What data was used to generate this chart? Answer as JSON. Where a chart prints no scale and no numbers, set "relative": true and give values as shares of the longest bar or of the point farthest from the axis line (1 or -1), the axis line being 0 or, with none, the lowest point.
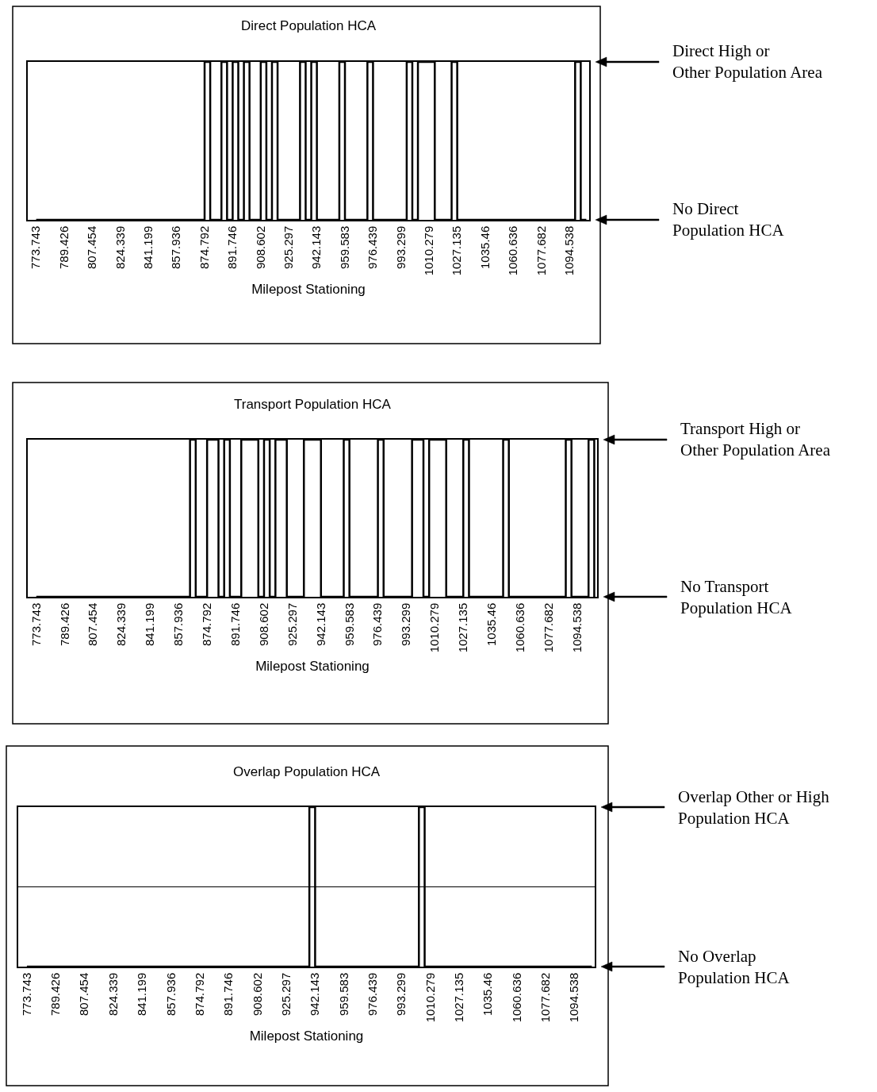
{
  "chart_data": [
    {
      "type": "step",
      "title": "Direct Population HCA",
      "xlabel": "Milepost Stationing",
      "relative": true,
      "color": "#000000",
      "categories": [
        "773.743",
        null,
        null,
        null,
        null,
        "789.426",
        null,
        null,
        null,
        null,
        "807.454",
        null,
        null,
        null,
        null,
        "824.339",
        null,
        null,
        null,
        null,
        "841.199",
        null,
        null,
        null,
        null,
        "857.936",
        null,
        null,
        null,
        null,
        "874.792",
        null,
        null,
        null,
        null,
        "891.746",
        null,
        null,
        null,
        null,
        "908.602",
        null,
        null,
        null,
        null,
        "925.297",
        null,
        null,
        null,
        null,
        "942.143",
        null,
        null,
        null,
        null,
        "959.583",
        null,
        null,
        null,
        null,
        "976.439",
        null,
        null,
        null,
        null,
        "993.299",
        null,
        null,
        null,
        null,
        "1010.279",
        null,
        null,
        null,
        null,
        "1027.135",
        null,
        null,
        null,
        null,
        "1035.46",
        null,
        null,
        null,
        null,
        "1060.636",
        null,
        null,
        null,
        null,
        "1077.682",
        null,
        null,
        null,
        null,
        "1094.538",
        null,
        null,
        null
      ],
      "values": [
        0,
        0,
        0,
        0,
        0,
        0,
        0,
        0,
        0,
        0,
        0,
        0,
        0,
        0,
        0,
        0,
        0,
        0,
        0,
        0,
        0,
        0,
        0,
        0,
        0,
        0,
        0,
        0,
        0,
        0,
        1,
        0,
        0,
        1,
        0,
        1,
        0,
        1,
        0,
        0,
        1,
        0,
        1,
        0,
        0,
        0,
        0,
        1,
        0,
        1,
        0,
        0,
        0,
        0,
        1,
        0,
        0,
        0,
        0,
        1,
        0,
        0,
        0,
        0,
        0,
        0,
        1,
        0,
        1,
        1,
        1,
        0,
        0,
        0,
        1,
        0,
        0,
        0,
        0,
        0,
        0,
        0,
        0,
        0,
        0,
        0,
        0,
        0,
        0,
        0,
        0,
        0,
        0,
        0,
        0,
        0,
        1,
        0,
        0
      ],
      "annotations": [
        "Direct High or\nOther Population Area",
        "No Direct\nPopulation HCA"
      ]
    },
    {
      "type": "step",
      "title": "Transport Population HCA",
      "xlabel": "Milepost Stationing",
      "relative": true,
      "color": "#000000",
      "categories": [
        "773.743",
        null,
        null,
        null,
        null,
        "789.426",
        null,
        null,
        null,
        null,
        "807.454",
        null,
        null,
        null,
        null,
        "824.339",
        null,
        null,
        null,
        null,
        "841.199",
        null,
        null,
        null,
        null,
        "857.936",
        null,
        null,
        null,
        null,
        "874.792",
        null,
        null,
        null,
        null,
        "891.746",
        null,
        null,
        null,
        null,
        "908.602",
        null,
        null,
        null,
        null,
        "925.297",
        null,
        null,
        null,
        null,
        "942.143",
        null,
        null,
        null,
        null,
        "959.583",
        null,
        null,
        null,
        null,
        "976.439",
        null,
        null,
        null,
        null,
        "993.299",
        null,
        null,
        null,
        null,
        "1010.279",
        null,
        null,
        null,
        null,
        "1027.135",
        null,
        null,
        null,
        null,
        "1035.46",
        null,
        null,
        null,
        null,
        "1060.636",
        null,
        null,
        null,
        null,
        "1077.682",
        null,
        null,
        null,
        null,
        "1094.538",
        null,
        null,
        null
      ],
      "values": [
        0,
        0,
        0,
        0,
        0,
        0,
        0,
        0,
        0,
        0,
        0,
        0,
        0,
        0,
        0,
        0,
        0,
        0,
        0,
        0,
        0,
        0,
        0,
        0,
        0,
        0,
        0,
        1,
        0,
        0,
        1,
        1,
        0,
        1,
        0,
        0,
        1,
        1,
        1,
        0,
        1,
        0,
        1,
        1,
        0,
        0,
        0,
        1,
        1,
        1,
        0,
        0,
        0,
        0,
        1,
        0,
        0,
        0,
        0,
        0,
        1,
        0,
        0,
        0,
        0,
        0,
        1,
        1,
        0,
        1,
        1,
        1,
        0,
        0,
        0,
        1,
        0,
        0,
        0,
        0,
        0,
        0,
        1,
        0,
        0,
        0,
        0,
        0,
        0,
        0,
        0,
        0,
        0,
        1,
        0,
        0,
        0,
        1,
        0
      ],
      "annotations": [
        "Transport High or\nOther Population Area",
        "No Transport\nPopulation HCA"
      ]
    },
    {
      "type": "step",
      "title": "Overlap Population HCA",
      "xlabel": "Milepost Stationing",
      "relative": true,
      "color": "#000000",
      "categories": [
        "773.743",
        null,
        null,
        null,
        null,
        "789.426",
        null,
        null,
        null,
        null,
        "807.454",
        null,
        null,
        null,
        null,
        "824.339",
        null,
        null,
        null,
        null,
        "841.199",
        null,
        null,
        null,
        null,
        "857.936",
        null,
        null,
        null,
        null,
        "874.792",
        null,
        null,
        null,
        null,
        "891.746",
        null,
        null,
        null,
        null,
        "908.602",
        null,
        null,
        null,
        null,
        "925.297",
        null,
        null,
        null,
        null,
        "942.143",
        null,
        null,
        null,
        null,
        "959.583",
        null,
        null,
        null,
        null,
        "976.439",
        null,
        null,
        null,
        null,
        "993.299",
        null,
        null,
        null,
        null,
        "1010.279",
        null,
        null,
        null,
        null,
        "1027.135",
        null,
        null,
        null,
        null,
        "1035.46",
        null,
        null,
        null,
        null,
        "1060.636",
        null,
        null,
        null,
        null,
        "1077.682",
        null,
        null,
        null,
        null,
        "1094.538",
        null,
        null,
        null
      ],
      "values": [
        0,
        0,
        0,
        0,
        0,
        0,
        0,
        0,
        0,
        0,
        0,
        0,
        0,
        0,
        0,
        0,
        0,
        0,
        0,
        0,
        0,
        0,
        0,
        0,
        0,
        0,
        0,
        0,
        0,
        0,
        0,
        0,
        0,
        0,
        0,
        0,
        0,
        0,
        0,
        0,
        0,
        0,
        0,
        0,
        0,
        0,
        0,
        0,
        0,
        1,
        0,
        0,
        0,
        0,
        0,
        0,
        0,
        0,
        0,
        0,
        0,
        0,
        0,
        0,
        0,
        0,
        0,
        0,
        1,
        0,
        0,
        0,
        0,
        0,
        0,
        0,
        0,
        0,
        0,
        0,
        0,
        0,
        0,
        0,
        0,
        0,
        0,
        0,
        0,
        0,
        0,
        0,
        0,
        0,
        0,
        0,
        0,
        0,
        0
      ],
      "ref_lines": [
        {
          "axis": "y",
          "value": 0.5,
          "color": "#000000"
        }
      ],
      "annotations": [
        "Overlap Other or High\nPopulation HCA",
        "No Overlap\nPopulation HCA"
      ]
    }
  ]
}
